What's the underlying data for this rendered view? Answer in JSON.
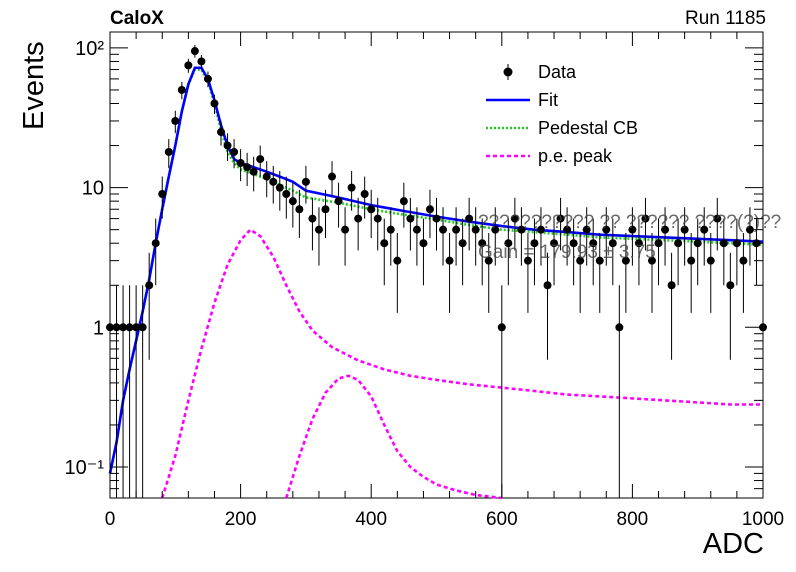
{
  "header": {
    "left_label": "CaloX",
    "right_label": "Run 1185"
  },
  "overlay_text": {
    "line1": "??????????? ?? ?????? ????(?)??",
    "line2": "Gain = 179.93 ± 3.75"
  },
  "chart_data": {
    "type": "scatter",
    "title": "",
    "xlabel": "ADC",
    "ylabel": "Events",
    "xlim": [
      0,
      1000
    ],
    "ylim": [
      0.06,
      130
    ],
    "yscale": "log",
    "x_ticks": [
      0,
      200,
      400,
      600,
      800,
      1000
    ],
    "x_tick_labels": [
      "0",
      "200",
      "400",
      "600",
      "800",
      "1000"
    ],
    "y_ticks": [
      0.1,
      1,
      10,
      100
    ],
    "y_tick_labels": [
      "10⁻¹",
      "1",
      "10",
      "10²"
    ],
    "grid": false,
    "legend_position": "top-right",
    "legend": [
      "Data",
      "Fit",
      "Pedestal CB",
      "p.e. peak"
    ],
    "colors": {
      "data": "#000000",
      "fit": "#0000ff",
      "pedestal": "#22cc22",
      "pe_peak": "#ff00ff"
    },
    "data_points": {
      "x": [
        0,
        10,
        20,
        30,
        40,
        50,
        60,
        70,
        80,
        90,
        100,
        110,
        120,
        130,
        140,
        150,
        160,
        170,
        180,
        190,
        200,
        210,
        220,
        230,
        240,
        250,
        260,
        270,
        280,
        290,
        300,
        310,
        320,
        330,
        340,
        350,
        360,
        370,
        380,
        390,
        400,
        410,
        420,
        430,
        440,
        450,
        460,
        470,
        480,
        490,
        500,
        510,
        520,
        530,
        540,
        550,
        560,
        570,
        580,
        590,
        600,
        610,
        620,
        630,
        640,
        650,
        660,
        670,
        680,
        690,
        700,
        710,
        720,
        730,
        740,
        750,
        760,
        770,
        780,
        790,
        800,
        810,
        820,
        830,
        840,
        850,
        860,
        870,
        880,
        890,
        900,
        910,
        920,
        930,
        940,
        950,
        960,
        970,
        980,
        990,
        1000
      ],
      "y": [
        1,
        1,
        1,
        1,
        1,
        1,
        2,
        4,
        9,
        18,
        30,
        50,
        75,
        95,
        80,
        60,
        40,
        25,
        20,
        18,
        15,
        14,
        13,
        16,
        12,
        11,
        10,
        9,
        8,
        7,
        11,
        6,
        5,
        7,
        12,
        8,
        5,
        10,
        6,
        9,
        7,
        6,
        4,
        5,
        3,
        8,
        6,
        5,
        4,
        7,
        6,
        5,
        3,
        5,
        4,
        6,
        5,
        4,
        3,
        5,
        1,
        4,
        6,
        5,
        3,
        4,
        5,
        2,
        4,
        6,
        5,
        4,
        3,
        5,
        4,
        3,
        5,
        4,
        1,
        3,
        5,
        4,
        6,
        3,
        4,
        5,
        2,
        4,
        5,
        3,
        4,
        5,
        3,
        6,
        4,
        2,
        4,
        3,
        5,
        4,
        1
      ]
    },
    "series": [
      {
        "name": "Fit",
        "x": [
          0,
          10,
          20,
          30,
          40,
          50,
          60,
          70,
          80,
          90,
          100,
          110,
          120,
          130,
          140,
          150,
          160,
          170,
          180,
          190,
          200,
          220,
          240,
          260,
          280,
          300,
          350,
          400,
          450,
          500,
          550,
          600,
          650,
          700,
          750,
          800,
          850,
          900,
          950,
          1000
        ],
        "y": [
          0.09,
          0.15,
          0.3,
          0.5,
          0.8,
          1.3,
          2.2,
          4,
          7,
          12,
          20,
          35,
          55,
          72,
          72,
          60,
          42,
          28,
          20,
          16,
          15,
          14,
          13,
          12,
          11,
          9.5,
          8.5,
          7.5,
          6.8,
          6.2,
          5.7,
          5.3,
          5,
          4.8,
          4.6,
          4.5,
          4.4,
          4.3,
          4.2,
          4.1
        ]
      },
      {
        "name": "Pedestal CB",
        "x": [
          0,
          10,
          20,
          30,
          40,
          50,
          60,
          70,
          80,
          90,
          100,
          110,
          120,
          130,
          140,
          150,
          160,
          170,
          180,
          190,
          200,
          220,
          240,
          260,
          280,
          300,
          350,
          400,
          450,
          500,
          550,
          600,
          650,
          700,
          750,
          800,
          850,
          900,
          950,
          1000
        ],
        "y": [
          0.09,
          0.15,
          0.3,
          0.5,
          0.8,
          1.3,
          2.2,
          4,
          7,
          12,
          20,
          35,
          55,
          70,
          70,
          58,
          40,
          26,
          18,
          15,
          13.5,
          12.5,
          11.5,
          10.5,
          9.5,
          8.5,
          7.8,
          7,
          6.4,
          5.9,
          5.4,
          5,
          4.8,
          4.6,
          4.4,
          4.3,
          4.2,
          4.1,
          4,
          3.9
        ]
      },
      {
        "name": "p.e. peak",
        "x": [
          80,
          100,
          120,
          140,
          160,
          180,
          200,
          215,
          230,
          250,
          270,
          290,
          310,
          340,
          380,
          420,
          460,
          500,
          550,
          600,
          650,
          700,
          750,
          800,
          850,
          900,
          950,
          1000
        ],
        "y": [
          0.06,
          0.12,
          0.3,
          0.7,
          1.5,
          2.8,
          4.2,
          5,
          4.5,
          3.2,
          2,
          1.3,
          0.95,
          0.72,
          0.58,
          0.5,
          0.45,
          0.42,
          0.39,
          0.37,
          0.35,
          0.33,
          0.32,
          0.31,
          0.3,
          0.29,
          0.28,
          0.28
        ]
      },
      {
        "name": "p.e. peak",
        "x": [
          270,
          290,
          310,
          330,
          350,
          365,
          380,
          400,
          420,
          440,
          460,
          480,
          500,
          530,
          560,
          600
        ],
        "y": [
          0.06,
          0.12,
          0.22,
          0.34,
          0.43,
          0.45,
          0.42,
          0.32,
          0.2,
          0.13,
          0.1,
          0.085,
          0.075,
          0.068,
          0.063,
          0.06
        ]
      }
    ]
  }
}
